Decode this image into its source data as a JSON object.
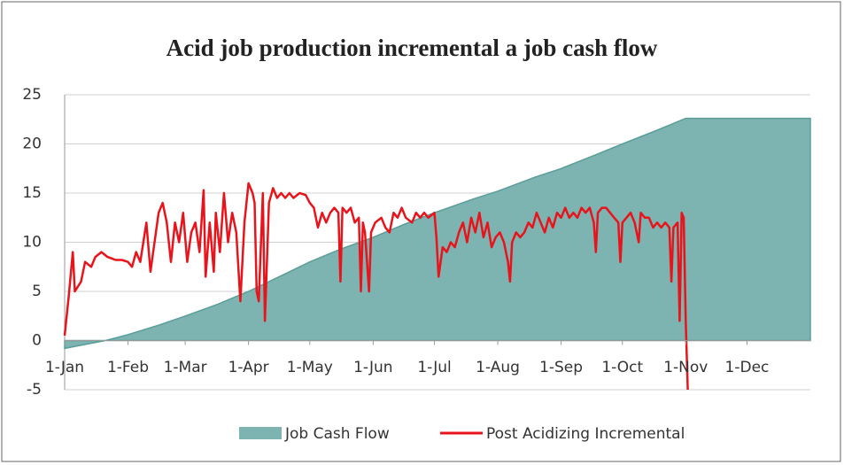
{
  "chart_data": {
    "type": "line",
    "title": "Acid job production incremental a job cash flow",
    "xlim": [
      0,
      365
    ],
    "xticks": [
      {
        "value": 0,
        "label": "1-Jan"
      },
      {
        "value": 31,
        "label": "1-Feb"
      },
      {
        "value": 59,
        "label": "1-Mar"
      },
      {
        "value": 90,
        "label": "1-Apr"
      },
      {
        "value": 120,
        "label": "1-May"
      },
      {
        "value": 151,
        "label": "1-Jun"
      },
      {
        "value": 181,
        "label": "1-Jul"
      },
      {
        "value": 212,
        "label": "1-Aug"
      },
      {
        "value": 243,
        "label": "1-Sep"
      },
      {
        "value": 273,
        "label": "1-Oct"
      },
      {
        "value": 304,
        "label": "1-Nov"
      },
      {
        "value": 334,
        "label": "1-Dec"
      }
    ],
    "ylim": [
      -5,
      25
    ],
    "yticks": [
      -5,
      0,
      5,
      10,
      15,
      20,
      25
    ],
    "grid": true,
    "legend": "bottom",
    "series": [
      {
        "name": "Job Cash Flow",
        "kind": "area",
        "color": "#7db3b0",
        "x": [
          0,
          10,
          20,
          31,
          45,
          59,
          75,
          90,
          105,
          120,
          135,
          151,
          166,
          181,
          200,
          212,
          230,
          243,
          260,
          273,
          290,
          304,
          365
        ],
        "values": [
          -0.8,
          -0.4,
          0,
          0.6,
          1.5,
          2.5,
          3.7,
          5,
          6.5,
          8,
          9.3,
          10.5,
          11.8,
          13,
          14.4,
          15.2,
          16.6,
          17.5,
          18.9,
          20,
          21.4,
          22.6,
          22.6
        ]
      },
      {
        "name": "Post Acidizing Incremental",
        "kind": "line",
        "color": "#e8141b",
        "x": [
          0,
          2,
          4,
          5,
          8,
          10,
          13,
          15,
          18,
          21,
          25,
          28,
          31,
          33,
          35,
          37,
          40,
          42,
          44,
          46,
          48,
          50,
          52,
          54,
          56,
          58,
          60,
          62,
          64,
          66,
          68,
          69,
          71,
          73,
          74,
          76,
          78,
          80,
          82,
          84,
          86,
          88,
          90,
          92,
          93,
          94,
          95,
          97,
          98,
          100,
          102,
          104,
          106,
          108,
          110,
          112,
          115,
          118,
          120,
          122,
          124,
          126,
          128,
          130,
          132,
          134,
          135,
          136,
          138,
          140,
          142,
          144,
          145,
          146,
          147,
          149,
          150,
          152,
          155,
          157,
          159,
          161,
          163,
          165,
          167,
          170,
          172,
          174,
          176,
          178,
          181,
          182,
          183,
          185,
          187,
          189,
          191,
          193,
          195,
          197,
          199,
          201,
          203,
          205,
          207,
          209,
          211,
          213,
          215,
          217,
          218,
          219,
          221,
          223,
          225,
          227,
          229,
          231,
          233,
          235,
          237,
          239,
          241,
          243,
          245,
          247,
          249,
          251,
          253,
          255,
          257,
          259,
          260,
          261,
          263,
          265,
          267,
          269,
          271,
          272,
          273,
          275,
          277,
          279,
          281,
          282,
          284,
          286,
          288,
          290,
          292,
          294,
          296,
          297,
          298,
          300,
          301,
          302,
          303,
          304,
          305
        ],
        "values": [
          0.5,
          4.5,
          9,
          5,
          6,
          8,
          7.5,
          8.5,
          9,
          8.5,
          8.2,
          8.2,
          8,
          7.5,
          9,
          8,
          12,
          7,
          10,
          13,
          14,
          12,
          8,
          12,
          10,
          13,
          8,
          11,
          12,
          9,
          15.3,
          6.5,
          12,
          7,
          13,
          9,
          15,
          10,
          13,
          11,
          4,
          12,
          16,
          15,
          14,
          5,
          4,
          15,
          2,
          14,
          15.5,
          14.5,
          15,
          14.5,
          15,
          14.5,
          15,
          14.8,
          14,
          13.5,
          11.5,
          13,
          12,
          13,
          13.5,
          13,
          6,
          13.5,
          13,
          13.5,
          12,
          12.5,
          5,
          12,
          11,
          5,
          11,
          12,
          12.5,
          11.5,
          11,
          13,
          12.5,
          13.5,
          12.5,
          12,
          13,
          12.5,
          13,
          12.5,
          13,
          10.5,
          6.5,
          9.5,
          9,
          10,
          9.5,
          11,
          12,
          10,
          12.5,
          11,
          13,
          10.5,
          12,
          9.5,
          10.5,
          11,
          10,
          8,
          6,
          10,
          11,
          10.5,
          11,
          12,
          11.5,
          13,
          12,
          11,
          12.5,
          11.5,
          13,
          12.5,
          13.5,
          12.5,
          13,
          12.5,
          13.5,
          13,
          13.5,
          12,
          9,
          13,
          13.5,
          13.5,
          13,
          12.5,
          12,
          8,
          12,
          12.5,
          13,
          12,
          10,
          13,
          12.5,
          12.5,
          11.5,
          12,
          11.5,
          12,
          11.5,
          6,
          11.5,
          12,
          2,
          13,
          12.5,
          2,
          -5
        ]
      }
    ]
  }
}
